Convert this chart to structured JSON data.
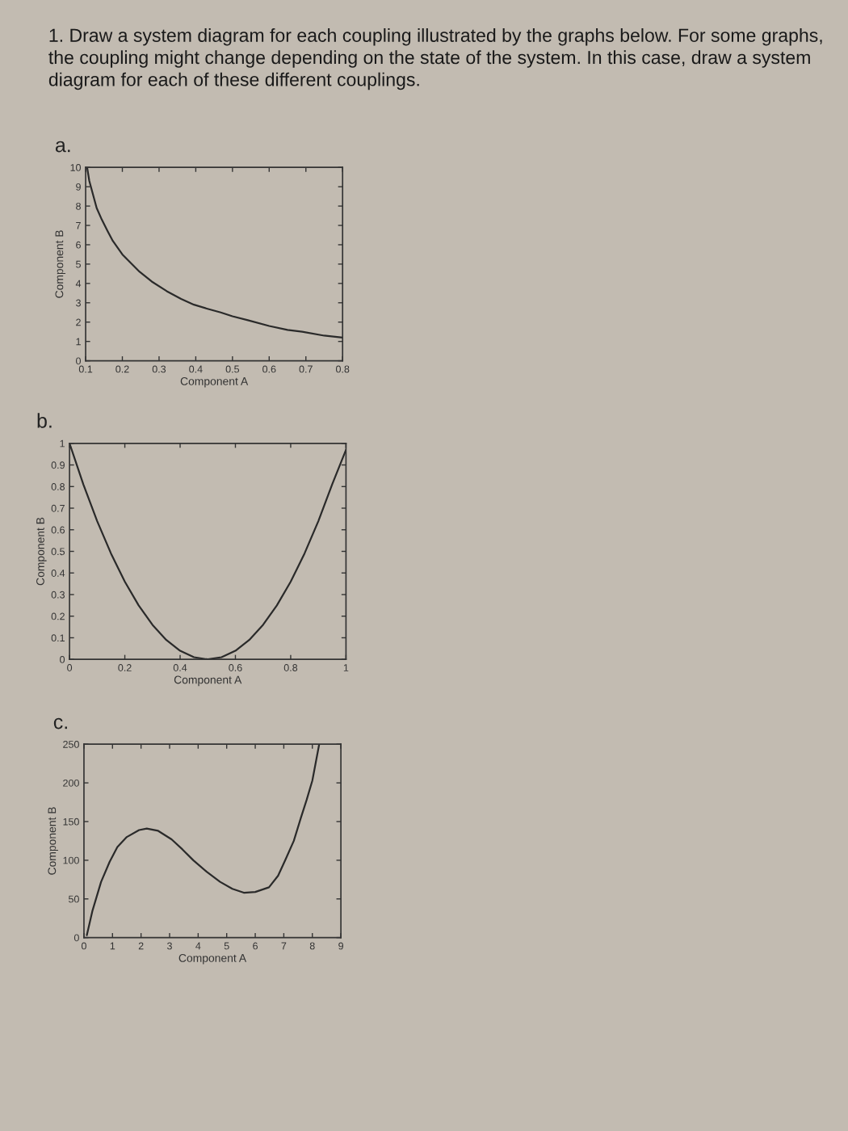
{
  "chart_data": [
    {
      "type": "line",
      "title": "a.",
      "xlabel": "Component A",
      "ylabel": "Component B",
      "annotations": [
        "1. Draw a system diagram for each coupling illustrated by the graphs below. For some graphs, the coupling might change depending on the state of the system. In this case, draw a system diagram for each of these different couplings."
      ],
      "x": [
        0.104,
        0.11,
        0.12,
        0.13,
        0.144,
        0.16,
        0.174,
        0.2,
        0.247,
        0.28,
        0.321,
        0.36,
        0.395,
        0.43,
        0.468,
        0.5,
        0.542,
        0.6,
        0.65,
        0.69,
        0.75,
        0.8
      ],
      "series": [
        {
          "color": "#2a2a2a",
          "values": [
            10,
            9.3,
            8.6,
            7.9,
            7.3,
            6.7,
            6.2,
            5.5,
            4.6,
            4.1,
            3.6,
            3.2,
            2.9,
            2.7,
            2.5,
            2.3,
            2.1,
            1.8,
            1.6,
            1.5,
            1.3,
            1.2
          ]
        }
      ],
      "xlim": [
        0.1,
        0.8
      ],
      "ylim": [
        0,
        10
      ],
      "xticks": [
        0.1,
        0.2,
        0.3,
        0.4,
        0.5,
        0.6,
        0.7,
        0.8
      ],
      "yticks": [
        0,
        1,
        2,
        3,
        4,
        5,
        6,
        7,
        8,
        9,
        10
      ]
    },
    {
      "type": "line",
      "title": "b.",
      "xlabel": "Component A",
      "ylabel": "Component B",
      "x": [
        0,
        0.05,
        0.1,
        0.15,
        0.2,
        0.25,
        0.3,
        0.35,
        0.4,
        0.45,
        0.5,
        0.55,
        0.6,
        0.65,
        0.7,
        0.75,
        0.8,
        0.85,
        0.9,
        0.95,
        1
      ],
      "series": [
        {
          "color": "#2a2a2a",
          "values": [
            1.0,
            0.81,
            0.64,
            0.49,
            0.36,
            0.25,
            0.16,
            0.09,
            0.04,
            0.01,
            0,
            0.01,
            0.04,
            0.09,
            0.16,
            0.25,
            0.36,
            0.49,
            0.64,
            0.81,
            0.97
          ]
        }
      ],
      "xlim": [
        0,
        1
      ],
      "ylim": [
        0,
        1
      ],
      "xticks": [
        0,
        0.2,
        0.4,
        0.6,
        0.8,
        1
      ],
      "yticks": [
        0,
        0.1,
        0.2,
        0.3,
        0.4,
        0.5,
        0.6,
        0.7,
        0.8,
        0.9,
        1
      ]
    },
    {
      "type": "line",
      "title": "c.",
      "xlabel": "Component A",
      "ylabel": "Component B",
      "x": [
        0.1,
        0.3,
        0.6,
        0.9,
        1.17,
        1.5,
        1.93,
        2.2,
        2.6,
        3.07,
        3.45,
        3.83,
        4.3,
        4.77,
        5.2,
        5.6,
        6.0,
        6.48,
        6.8,
        7.05,
        7.35,
        7.6,
        7.8,
        8.0,
        8.24
      ],
      "series": [
        {
          "color": "#2a2a2a",
          "values": [
            3,
            35,
            72,
            98,
            117,
            130,
            139,
            141,
            138,
            127,
            114,
            100,
            85,
            72,
            63,
            58,
            59,
            65,
            80,
            100,
            125,
            155,
            178,
            203,
            250
          ]
        }
      ],
      "xlim": [
        0,
        9
      ],
      "ylim": [
        0,
        250
      ],
      "xticks": [
        0,
        1,
        2,
        3,
        4,
        5,
        6,
        7,
        8,
        9
      ],
      "yticks": [
        0,
        50,
        100,
        150,
        200,
        250
      ]
    }
  ]
}
